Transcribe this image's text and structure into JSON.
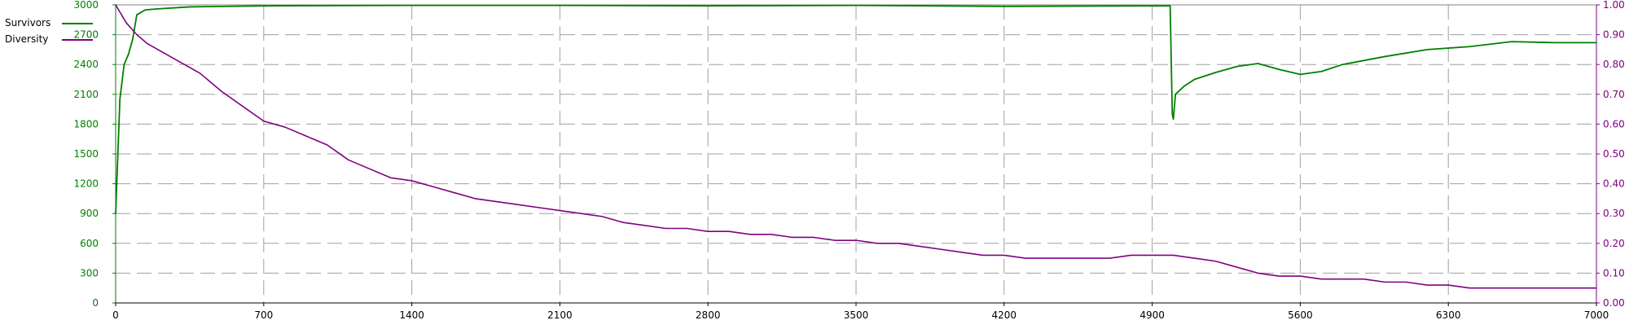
{
  "chart_data": {
    "type": "line",
    "x": {
      "min": 0,
      "max": 7000,
      "ticks": [
        0,
        700,
        1400,
        2100,
        2800,
        3500,
        4200,
        4900,
        5600,
        6300,
        7000
      ]
    },
    "y_left": {
      "min": 0,
      "max": 3000,
      "ticks": [
        0,
        300,
        600,
        900,
        1200,
        1500,
        1800,
        2100,
        2400,
        2700,
        3000
      ]
    },
    "y_right": {
      "min": 0.0,
      "max": 1.0,
      "ticks": [
        "0.00",
        "0.10",
        "0.20",
        "0.30",
        "0.40",
        "0.50",
        "0.60",
        "0.70",
        "0.80",
        "0.90",
        "1.00"
      ]
    },
    "grid": "dashed gray",
    "legend_position": "top-left",
    "series": [
      {
        "name": "Survivors",
        "axis": "left",
        "color": "#008000",
        "x": [
          0,
          20,
          40,
          60,
          80,
          100,
          140,
          200,
          350,
          700,
          1400,
          2100,
          2800,
          3500,
          4200,
          4900,
          4985,
          4995,
          5000,
          5010,
          5050,
          5100,
          5200,
          5300,
          5400,
          5500,
          5600,
          5700,
          5800,
          6000,
          6200,
          6400,
          6600,
          6800,
          7000
        ],
        "y": [
          900,
          2050,
          2400,
          2500,
          2650,
          2900,
          2950,
          2960,
          2980,
          2990,
          2995,
          2995,
          2990,
          2995,
          2985,
          2990,
          2990,
          1900,
          1850,
          2100,
          2180,
          2250,
          2320,
          2380,
          2410,
          2350,
          2300,
          2330,
          2400,
          2480,
          2550,
          2580,
          2630,
          2620,
          2620
        ]
      },
      {
        "name": "Diversity",
        "axis": "right",
        "color": "#800080",
        "x": [
          0,
          25,
          50,
          100,
          150,
          200,
          300,
          350,
          400,
          500,
          600,
          700,
          800,
          900,
          1000,
          1100,
          1200,
          1300,
          1400,
          1500,
          1600,
          1700,
          1800,
          1900,
          2000,
          2100,
          2200,
          2300,
          2400,
          2500,
          2600,
          2700,
          2800,
          2900,
          3000,
          3100,
          3200,
          3300,
          3400,
          3500,
          3600,
          3700,
          3800,
          3900,
          4000,
          4100,
          4200,
          4300,
          4400,
          4500,
          4600,
          4700,
          4800,
          4900,
          5000,
          5100,
          5200,
          5300,
          5400,
          5500,
          5600,
          5700,
          5800,
          5900,
          6000,
          6100,
          6200,
          6300,
          6400,
          6500,
          6600,
          6700,
          6800,
          6900,
          7000
        ],
        "y": [
          1.0,
          0.97,
          0.94,
          0.9,
          0.87,
          0.85,
          0.81,
          0.79,
          0.77,
          0.71,
          0.66,
          0.61,
          0.59,
          0.56,
          0.53,
          0.48,
          0.45,
          0.42,
          0.41,
          0.39,
          0.37,
          0.35,
          0.34,
          0.33,
          0.32,
          0.31,
          0.3,
          0.29,
          0.27,
          0.26,
          0.25,
          0.25,
          0.24,
          0.24,
          0.23,
          0.23,
          0.22,
          0.22,
          0.21,
          0.21,
          0.2,
          0.2,
          0.19,
          0.18,
          0.17,
          0.16,
          0.16,
          0.15,
          0.15,
          0.15,
          0.15,
          0.15,
          0.16,
          0.16,
          0.16,
          0.15,
          0.14,
          0.12,
          0.1,
          0.09,
          0.09,
          0.08,
          0.08,
          0.08,
          0.07,
          0.07,
          0.06,
          0.06,
          0.05,
          0.05,
          0.05,
          0.05,
          0.05,
          0.05,
          0.05
        ]
      }
    ]
  }
}
